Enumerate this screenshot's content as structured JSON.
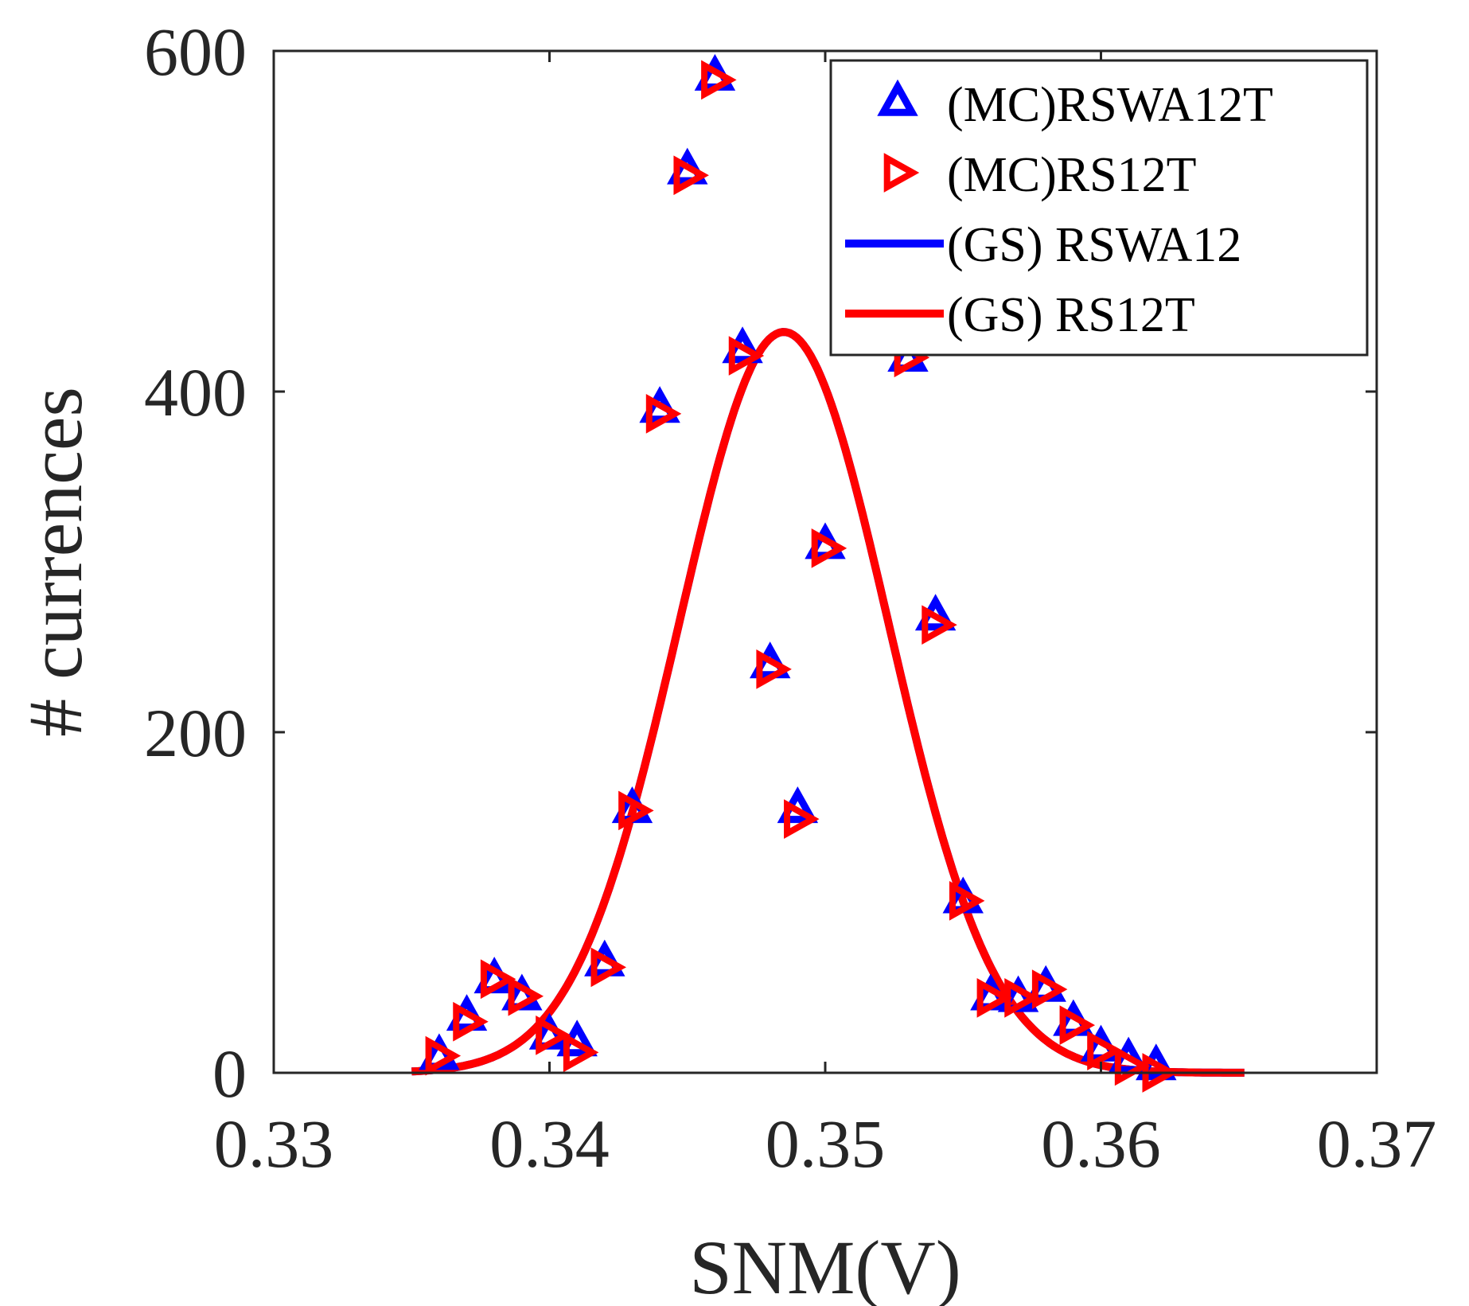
{
  "chart_data": {
    "type": "scatter",
    "title": "",
    "xlabel": "SNM(V)",
    "ylabel": "# currences",
    "xlim": [
      0.33,
      0.37
    ],
    "ylim": [
      0,
      600
    ],
    "xticks": [
      0.33,
      0.34,
      0.35,
      0.36,
      0.37
    ],
    "xtick_labels": [
      "0.33",
      "0.34",
      "0.35",
      "0.36",
      "0.37"
    ],
    "yticks": [
      0,
      200,
      400,
      600
    ],
    "ytick_labels": [
      "0",
      "200",
      "400",
      "600"
    ],
    "grid": false,
    "legend_position": "top-right",
    "series": [
      {
        "name": "(MC)RSWA12T",
        "kind": "markers",
        "marker": "triangle-up",
        "color": "#0000ff",
        "x": [
          0.336,
          0.337,
          0.338,
          0.339,
          0.34,
          0.341,
          0.342,
          0.343,
          0.344,
          0.345,
          0.346,
          0.347,
          0.348,
          0.349,
          0.35,
          0.353,
          0.354,
          0.355,
          0.356,
          0.357,
          0.358,
          0.359,
          0.36,
          0.361,
          0.362
        ],
        "y": [
          10,
          33,
          55,
          45,
          22,
          18,
          65,
          155,
          390,
          530,
          585,
          425,
          240,
          155,
          310,
          420,
          268,
          102,
          45,
          44,
          50,
          30,
          15,
          8,
          4
        ]
      },
      {
        "name": "(MC)RS12T",
        "kind": "markers",
        "marker": "triangle-right",
        "color": "#ff0000",
        "x": [
          0.336,
          0.337,
          0.338,
          0.339,
          0.34,
          0.341,
          0.342,
          0.343,
          0.344,
          0.345,
          0.346,
          0.347,
          0.348,
          0.349,
          0.35,
          0.353,
          0.354,
          0.355,
          0.356,
          0.357,
          0.358,
          0.359,
          0.36,
          0.361,
          0.362
        ],
        "y": [
          10,
          30,
          55,
          45,
          22,
          12,
          62,
          154,
          387,
          527,
          583,
          421,
          237,
          149,
          308,
          420,
          263,
          101,
          44,
          44,
          49,
          28,
          13,
          4,
          0
        ]
      },
      {
        "name": "(GS) RSWA12",
        "kind": "line",
        "color": "#0000ff",
        "mu": 0.3485,
        "sigma": 0.0038,
        "peak": 435,
        "x_range": [
          0.335,
          0.3652
        ]
      },
      {
        "name": "(GS) RS12T",
        "kind": "line",
        "color": "#ff0000",
        "mu": 0.3485,
        "sigma": 0.0038,
        "peak": 435,
        "x_range": [
          0.335,
          0.3652
        ]
      }
    ]
  }
}
